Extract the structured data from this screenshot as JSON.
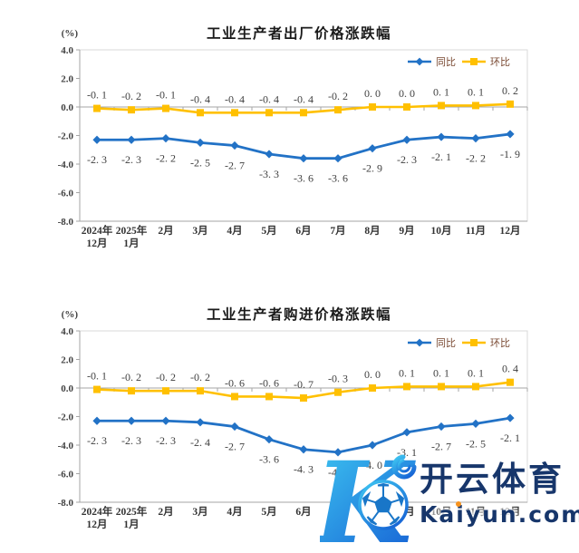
{
  "page": {
    "background": "#ffffff"
  },
  "style": {
    "axis_color": "#a6a6a6",
    "border_color": "#d9d9d9",
    "label_color": "#404040",
    "xlabel_color": "#333333",
    "legend_text_color": "#7a4a33",
    "title_color": "#1a1a1a"
  },
  "chart_data": [
    {
      "type": "line",
      "title": "工业生产者出厂价格涨跌幅",
      "ylabel": "(%)",
      "ylim": [
        -8.0,
        4.0
      ],
      "ytick_step": 2.0,
      "grid": false,
      "legend_position": "top-right",
      "categories": [
        "2024年\n12月",
        "2025年\n1月",
        "2月",
        "3月",
        "4月",
        "5月",
        "6月",
        "7月",
        "8月",
        "9月",
        "10月",
        "11月",
        "12月"
      ],
      "series": [
        {
          "key": "yoy",
          "name": "同比",
          "marker": "diamond",
          "color": "#2272c6",
          "values": [
            -2.3,
            -2.3,
            -2.2,
            -2.5,
            -2.7,
            -3.3,
            -3.6,
            -3.6,
            -2.9,
            -2.3,
            -2.1,
            -2.2,
            -1.9
          ]
        },
        {
          "key": "mom",
          "name": "环比",
          "marker": "square",
          "color": "#ffc000",
          "values": [
            -0.1,
            -0.2,
            -0.1,
            -0.4,
            -0.4,
            -0.4,
            -0.4,
            -0.2,
            0.0,
            0.0,
            0.1,
            0.1,
            0.2
          ]
        }
      ]
    },
    {
      "type": "line",
      "title": "工业生产者购进价格涨跌幅",
      "ylabel": "(%)",
      "ylim": [
        -8.0,
        4.0
      ],
      "ytick_step": 2.0,
      "grid": false,
      "legend_position": "top-right",
      "categories": [
        "2024年\n12月",
        "2025年\n1月",
        "2月",
        "3月",
        "4月",
        "5月",
        "6月",
        "7月",
        "8月",
        "9月",
        "10月",
        "11月",
        "12月"
      ],
      "series": [
        {
          "key": "yoy",
          "name": "同比",
          "marker": "diamond",
          "color": "#2272c6",
          "values": [
            -2.3,
            -2.3,
            -2.3,
            -2.4,
            -2.7,
            -3.6,
            -4.3,
            -4.5,
            -4.0,
            -3.1,
            -2.7,
            -2.5,
            -2.1
          ]
        },
        {
          "key": "mom",
          "name": "环比",
          "marker": "square",
          "color": "#ffc000",
          "values": [
            -0.1,
            -0.2,
            -0.2,
            -0.2,
            -0.6,
            -0.6,
            -0.7,
            -0.3,
            0.0,
            0.1,
            0.1,
            0.1,
            0.4
          ]
        }
      ]
    }
  ],
  "watermark": {
    "logo_letter": "K",
    "brand_text": "开云体育",
    "domain_text": "Kaiyun.com",
    "brand_color": "#17366b",
    "logo_gradient_start": "#3fc9f2",
    "logo_gradient_end": "#1866d6",
    "ball_line_color": "#1976c8",
    "accent_dot_color": "#f7931e"
  }
}
